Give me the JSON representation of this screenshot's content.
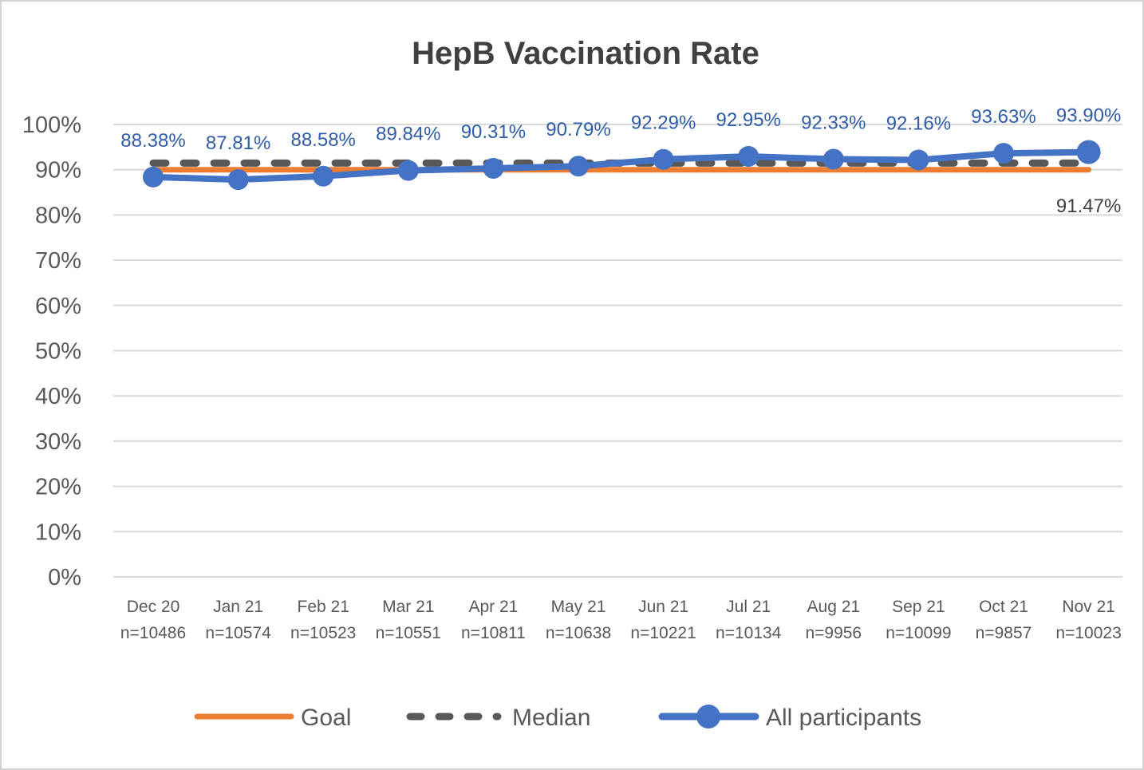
{
  "chart_data": {
    "type": "line",
    "title": "HepB Vaccination Rate",
    "categories": [
      "Dec 20",
      "Jan 21",
      "Feb 21",
      "Mar 21",
      "Apr 21",
      "May 21",
      "Jun 21",
      "Jul 21",
      "Aug 21",
      "Sep 21",
      "Oct 21",
      "Nov 21"
    ],
    "sample_sizes": [
      "n=10486",
      "n=10574",
      "n=10523",
      "n=10551",
      "n=10811",
      "n=10638",
      "n=10221",
      "n=10134",
      "n=9956",
      "n=10099",
      "n=9857",
      "n=10023"
    ],
    "y_axis": {
      "min": 0,
      "max": 100,
      "step": 10,
      "tick_labels": [
        "0%",
        "10%",
        "20%",
        "30%",
        "40%",
        "50%",
        "60%",
        "70%",
        "80%",
        "90%",
        "100%"
      ]
    },
    "grid": true,
    "legend_position": "bottom",
    "series": [
      {
        "name": "Goal",
        "style": "solid",
        "color": "#ED7D31",
        "values": [
          90,
          90,
          90,
          90,
          90,
          90,
          90,
          90,
          90,
          90,
          90,
          90
        ]
      },
      {
        "name": "Median",
        "style": "dashed",
        "color": "#595959",
        "values": [
          91.47,
          91.47,
          91.47,
          91.47,
          91.47,
          91.47,
          91.47,
          91.47,
          91.47,
          91.47,
          91.47,
          91.47
        ],
        "last_value_label": "91.47%",
        "label_color": "#404040"
      },
      {
        "name": "All participants",
        "style": "solid-markers",
        "color": "#4472C4",
        "values": [
          88.38,
          87.81,
          88.58,
          89.84,
          90.31,
          90.79,
          92.29,
          92.95,
          92.33,
          92.16,
          93.63,
          93.9
        ],
        "data_labels": [
          "88.38%",
          "87.81%",
          "88.58%",
          "89.84%",
          "90.31%",
          "90.79%",
          "92.29%",
          "92.95%",
          "92.33%",
          "92.16%",
          "93.63%",
          "93.90%"
        ],
        "label_color": "#2E5CA6"
      }
    ],
    "colors": {
      "title": "#404040",
      "axis_text": "#595959",
      "gridline": "#D9D9D9",
      "legend_text": "#595959"
    }
  }
}
